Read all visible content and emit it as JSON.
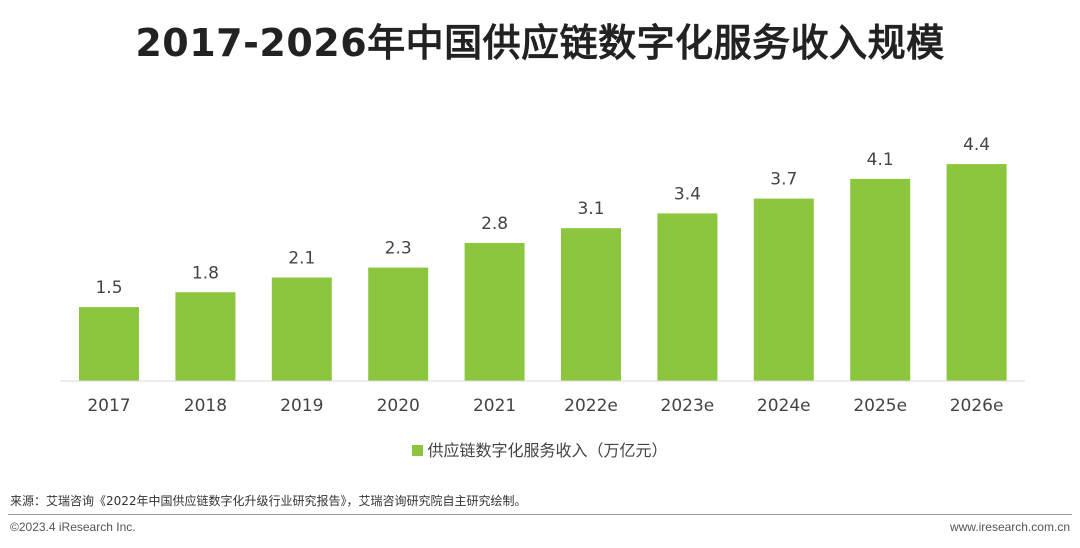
{
  "chart_data": {
    "type": "bar",
    "title": "2017-2026年中国供应链数字化服务收入规模",
    "categories": [
      "2017",
      "2018",
      "2019",
      "2020",
      "2021",
      "2022e",
      "2023e",
      "2024e",
      "2025e",
      "2026e"
    ],
    "series": [
      {
        "name": "供应链数字化服务收入（万亿元）",
        "values": [
          1.5,
          1.8,
          2.1,
          2.3,
          2.8,
          3.1,
          3.4,
          3.7,
          4.1,
          4.4
        ],
        "labels": [
          "1.5",
          "1.8",
          "2.1",
          "2.3",
          "2.8",
          "3.1",
          "3.4",
          "3.7",
          "4.1",
          "4.4"
        ],
        "color": "#8cc63f"
      }
    ],
    "xlabel": "",
    "ylabel": "",
    "ylim": [
      0,
      4.4
    ],
    "grid": false,
    "legend_position": "bottom-center"
  },
  "footer": {
    "source": "来源：艾瑞咨询《2022年中国供应链数字化升级行业研究报告》，艾瑞咨询研究院自主研究绘制。",
    "copyright": "©2023.4 iResearch Inc.",
    "website": "www.iresearch.com.cn"
  },
  "colors": {
    "bar": "#8cc63f",
    "axis": "#d9d9d9"
  }
}
